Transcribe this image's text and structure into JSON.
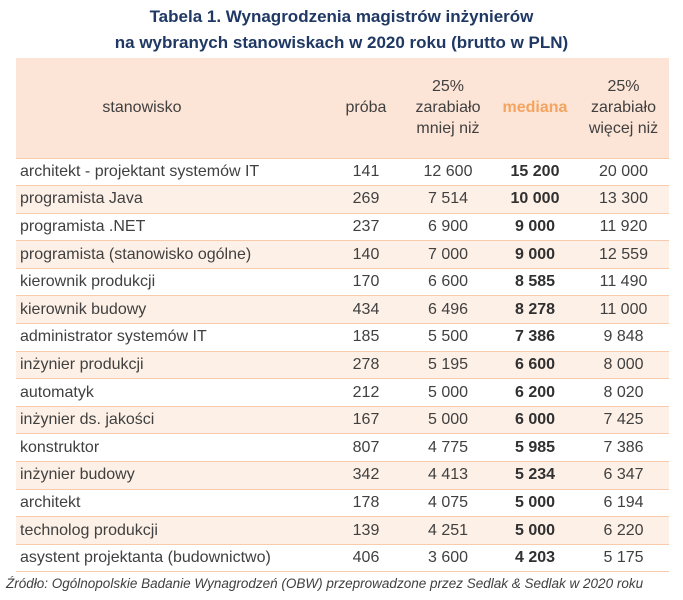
{
  "title": {
    "line1": "Tabela 1. Wynagrodzenia magistrów inżynierów",
    "line2": "na wybranych stanowiskach w 2020 roku (brutto w PLN)"
  },
  "header": {
    "stanowisko": "stanowisko",
    "proba": "próba",
    "q25_l1": "25%",
    "q25_l2": "zarabiało",
    "q25_l3": "mniej niż",
    "mediana": "mediana",
    "q75_l1": "25%",
    "q75_l2": "zarabiało",
    "q75_l3": "więcej niż"
  },
  "rows": [
    {
      "stanowisko": "architekt - projektant systemów IT",
      "proba": "141",
      "mniej": "12 600",
      "mediana": "15 200",
      "wiecej": "20 000"
    },
    {
      "stanowisko": "programista Java",
      "proba": "269",
      "mniej": "7 514",
      "mediana": "10 000",
      "wiecej": "13 300"
    },
    {
      "stanowisko": "programista .NET",
      "proba": "237",
      "mniej": "6 900",
      "mediana": "9 000",
      "wiecej": "11 920"
    },
    {
      "stanowisko": "programista (stanowisko ogólne)",
      "proba": "140",
      "mniej": "7 000",
      "mediana": "9 000",
      "wiecej": "12 559"
    },
    {
      "stanowisko": "kierownik produkcji",
      "proba": "170",
      "mniej": "6 600",
      "mediana": "8 585",
      "wiecej": "11 490"
    },
    {
      "stanowisko": "kierownik budowy",
      "proba": "434",
      "mniej": "6 496",
      "mediana": "8 278",
      "wiecej": "11 000"
    },
    {
      "stanowisko": "administrator systemów IT",
      "proba": "185",
      "mniej": "5 500",
      "mediana": "7 386",
      "wiecej": "9 848"
    },
    {
      "stanowisko": "inżynier produkcji",
      "proba": "278",
      "mniej": "5 195",
      "mediana": "6 600",
      "wiecej": "8 000"
    },
    {
      "stanowisko": "automatyk",
      "proba": "212",
      "mniej": "5 000",
      "mediana": "6 200",
      "wiecej": "8 020"
    },
    {
      "stanowisko": "inżynier ds. jakości",
      "proba": "167",
      "mniej": "5 000",
      "mediana": "6 000",
      "wiecej": "7 425"
    },
    {
      "stanowisko": "konstruktor",
      "proba": "807",
      "mniej": "4 775",
      "mediana": "5 985",
      "wiecej": "7 386"
    },
    {
      "stanowisko": "inżynier budowy",
      "proba": "342",
      "mniej": "4 413",
      "mediana": "5 234",
      "wiecej": "6 347"
    },
    {
      "stanowisko": "architekt",
      "proba": "178",
      "mniej": "4 075",
      "mediana": "5 000",
      "wiecej": "6 194"
    },
    {
      "stanowisko": "technolog produkcji",
      "proba": "139",
      "mniej": "4 251",
      "mediana": "5 000",
      "wiecej": "6 220"
    },
    {
      "stanowisko": "asystent projektanta (budownictwo)",
      "proba": "406",
      "mniej": "3 600",
      "mediana": "4 203",
      "wiecej": "5 175"
    }
  ],
  "source": "Źródło: Ogólnopolskie Badanie Wynagrodzeń (OBW) przeprowadzone przez Sedlak & Sedlak w 2020 roku"
}
